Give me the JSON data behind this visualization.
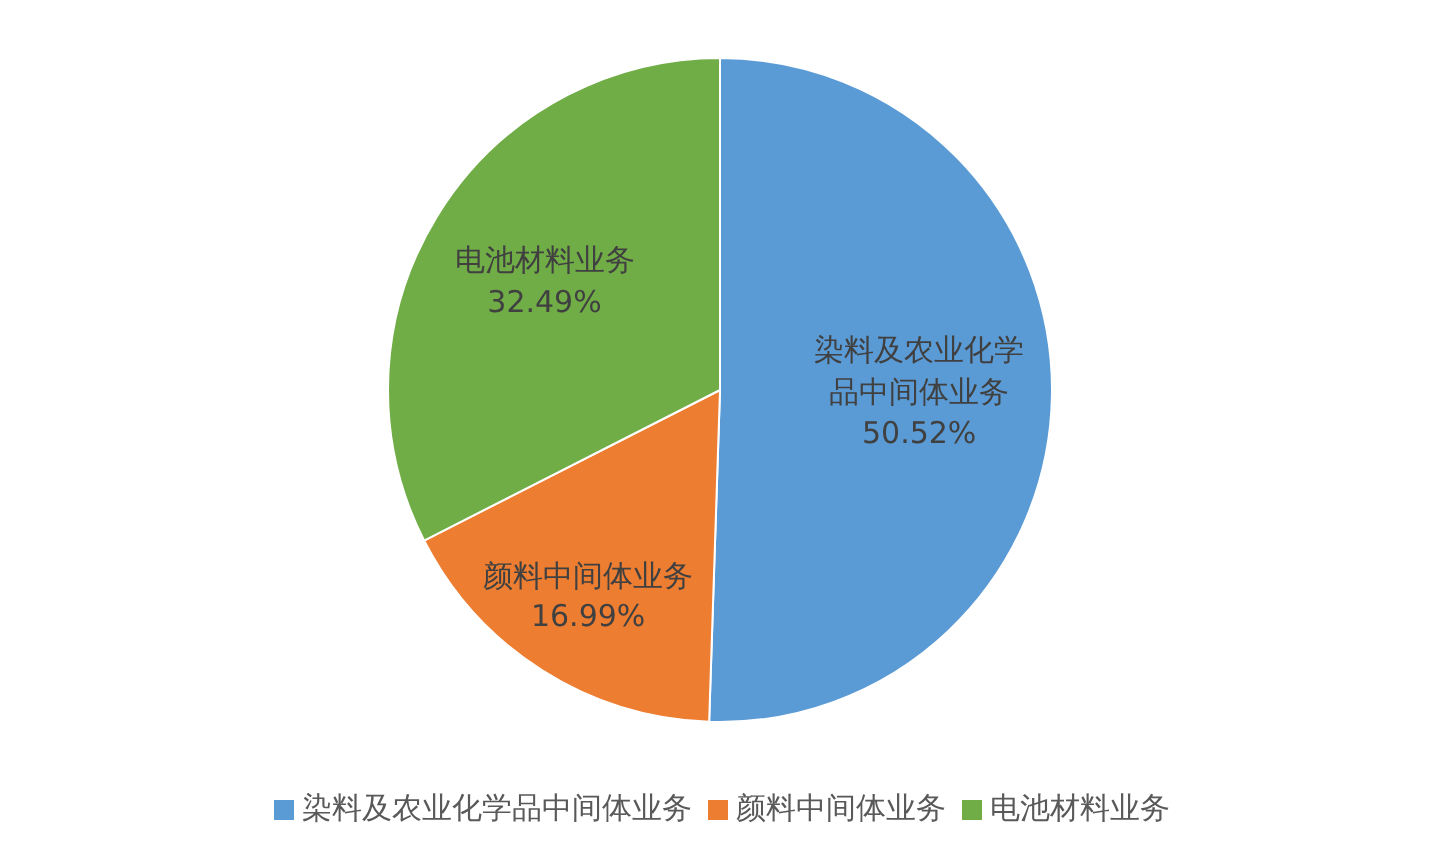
{
  "chart_data": {
    "type": "pie",
    "categories": [
      "染料及农业化学品中间体业务",
      "颜料中间体业务",
      "电池材料业务"
    ],
    "values": [
      50.52,
      16.99,
      32.49
    ],
    "value_labels": [
      "50.52%",
      "16.99%",
      "32.49%"
    ],
    "data_labels": true,
    "colors": [
      "#5b9bd5",
      "#ed7d31",
      "#70ad47"
    ],
    "legend": "bottom"
  }
}
